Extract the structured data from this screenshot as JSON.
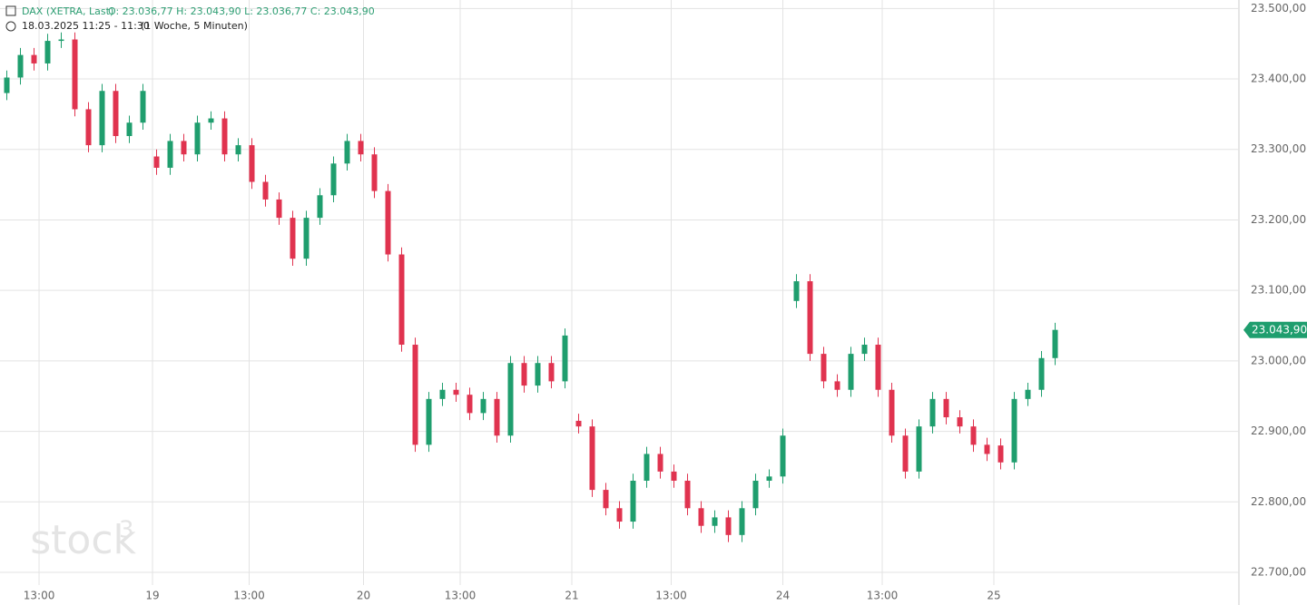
{
  "chart_data": {
    "type": "candlestick",
    "title": "DAX (XETRA, Last)",
    "ohlc_text": "O: 23.036,77  H: 23.043,90  L: 23.036,77  C: 23.043,90",
    "subtitle": "18.03.2025 11:25 - 11:30",
    "period": "(1 Woche, 5 Minuten)",
    "watermark": "stock",
    "watermark_sup": "3",
    "up_color": "#1f9e6e",
    "down_color": "#e0334f",
    "grid": true,
    "xlim": [
      -0.5,
      90.5
    ],
    "xticks": [
      {
        "value": 2.37,
        "label": "13:00"
      },
      {
        "value": 10.7,
        "label": "19"
      },
      {
        "value": 17.8,
        "label": "13:00"
      },
      {
        "value": 26.2,
        "label": "20"
      },
      {
        "value": 33.3,
        "label": "13:00"
      },
      {
        "value": 41.5,
        "label": "21"
      },
      {
        "value": 48.8,
        "label": "13:00"
      },
      {
        "value": 57.0,
        "label": "24"
      },
      {
        "value": 64.3,
        "label": "13:00"
      },
      {
        "value": 72.5,
        "label": "25"
      }
    ],
    "ylim": [
      22682,
      23512
    ],
    "yticks": [
      {
        "value": 22700,
        "label": "22.700,00"
      },
      {
        "value": 22800,
        "label": "22.800,00"
      },
      {
        "value": 22900,
        "label": "22.900,00"
      },
      {
        "value": 23000,
        "label": "23.000,00"
      },
      {
        "value": 23100,
        "label": "23.100,00"
      },
      {
        "value": 23200,
        "label": "23.200,00"
      },
      {
        "value": 23300,
        "label": "23.300,00"
      },
      {
        "value": 23400,
        "label": "23.400,00"
      },
      {
        "value": 23500,
        "label": "23.500,00"
      }
    ],
    "last_price": {
      "value": 23043.9,
      "label": "23.043,90"
    },
    "open": [
      23380,
      23402,
      23434,
      23422,
      23454,
      23456,
      23357,
      23306,
      23383,
      23319,
      23338,
      23290,
      23274,
      23312,
      23293,
      23338,
      23344,
      23293,
      23306,
      23254,
      23229,
      23203,
      23145,
      23203,
      23235,
      23280,
      23312,
      23293,
      23241,
      23151,
      23023,
      22881,
      22946,
      22959,
      22952,
      22926,
      22946,
      22894,
      22997,
      22965,
      22997,
      22971,
      22915,
      22907,
      22817,
      22791,
      22772,
      22830,
      22868,
      22843,
      22830,
      22791,
      22766,
      22778,
      22753,
      22791,
      22830,
      22836,
      23085,
      23113,
      23010,
      22971,
      22959,
      23010,
      23023,
      22959,
      22894,
      22843,
      22907,
      22946,
      22920,
      22907,
      22881,
      22880,
      22856,
      22946,
      22959,
      23004
    ],
    "high": [
      23412,
      23444,
      23444,
      23464,
      23466,
      23466,
      23367,
      23393,
      23393,
      23348,
      23393,
      23300,
      23322,
      23322,
      23348,
      23354,
      23354,
      23316,
      23316,
      23264,
      23239,
      23213,
      23213,
      23245,
      23290,
      23322,
      23322,
      23303,
      23251,
      23161,
      23033,
      22956,
      22969,
      22969,
      22962,
      22956,
      22956,
      23007,
      23007,
      23007,
      23007,
      23046,
      22925,
      22917,
      22827,
      22801,
      22840,
      22878,
      22878,
      22853,
      22840,
      22801,
      22788,
      22788,
      22801,
      22840,
      22846,
      22904,
      23123,
      23123,
      23020,
      22981,
      23020,
      23033,
      23033,
      22969,
      22904,
      22917,
      22956,
      22956,
      22930,
      22917,
      22891,
      22890,
      22956,
      22969,
      23014,
      23054
    ],
    "low": [
      23370,
      23392,
      23412,
      23412,
      23444,
      23347,
      23296,
      23296,
      23309,
      23309,
      23328,
      23264,
      23264,
      23283,
      23283,
      23328,
      23283,
      23283,
      23244,
      23219,
      23193,
      23135,
      23135,
      23193,
      23225,
      23270,
      23283,
      23231,
      23141,
      23013,
      22871,
      22871,
      22936,
      22942,
      22916,
      22916,
      22884,
      22884,
      22955,
      22955,
      22961,
      22961,
      22897,
      22807,
      22781,
      22762,
      22762,
      22820,
      22833,
      22820,
      22781,
      22756,
      22756,
      22743,
      22743,
      22781,
      22820,
      22826,
      23075,
      23000,
      22961,
      22949,
      22949,
      23000,
      22949,
      22884,
      22833,
      22833,
      22897,
      22910,
      22897,
      22871,
      22858,
      22846,
      22846,
      22936,
      22949,
      22994
    ],
    "close": [
      23402,
      23434,
      23422,
      23454,
      23456,
      23357,
      23306,
      23383,
      23319,
      23338,
      23383,
      23274,
      23312,
      23293,
      23338,
      23344,
      23293,
      23306,
      23254,
      23229,
      23203,
      23145,
      23203,
      23235,
      23280,
      23312,
      23293,
      23241,
      23151,
      23023,
      22881,
      22946,
      22959,
      22952,
      22926,
      22946,
      22894,
      22997,
      22965,
      22997,
      22971,
      23036,
      22907,
      22817,
      22791,
      22772,
      22830,
      22868,
      22843,
      22830,
      22791,
      22766,
      22778,
      22753,
      22791,
      22830,
      22836,
      22894,
      23113,
      23010,
      22971,
      22959,
      23010,
      23023,
      22959,
      22894,
      22843,
      22907,
      22946,
      22920,
      22907,
      22881,
      22868,
      22856,
      22946,
      22959,
      23004,
      23044
    ]
  }
}
